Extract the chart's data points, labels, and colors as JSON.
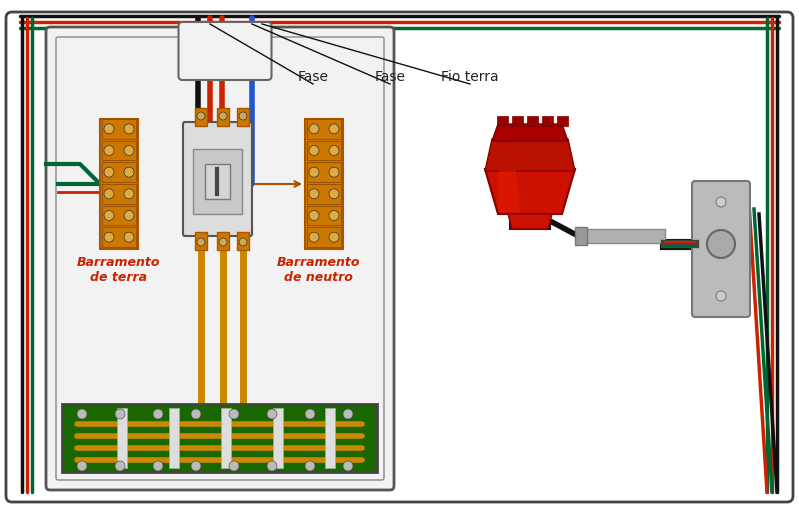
{
  "bg_color": "#ffffff",
  "wire_red": "#cc2200",
  "wire_green": "#006633",
  "wire_black": "#111111",
  "wire_blue": "#2255cc",
  "wire_teal": "#009999",
  "panel_bg": "#f2f2f2",
  "panel_border": "#555555",
  "terminal_orange": "#cc7700",
  "terminal_dark": "#aa5500",
  "breaker_bg": "#dddddd",
  "breaker_border": "#555555",
  "bottom_strip_bg": "#1a6600",
  "bus_bar": "#cc8800",
  "plate_color": "#bbbbbb",
  "plate_border": "#777777",
  "lamp_red": "#cc1100",
  "lamp_dark": "#880000",
  "lamp_black": "#222222",
  "label_color": "#222222",
  "label_red": "#cc2200",
  "outer_border": "#444444",
  "labels": {
    "fase1": "Fase",
    "fase2": "Fase",
    "fio_terra": "Fio terra",
    "barr_terra": "Barramento\nde terra",
    "barr_neutro": "Barramento\nde neutro"
  },
  "wire_lw": 2.5,
  "inner_wire_lw": 4.0
}
